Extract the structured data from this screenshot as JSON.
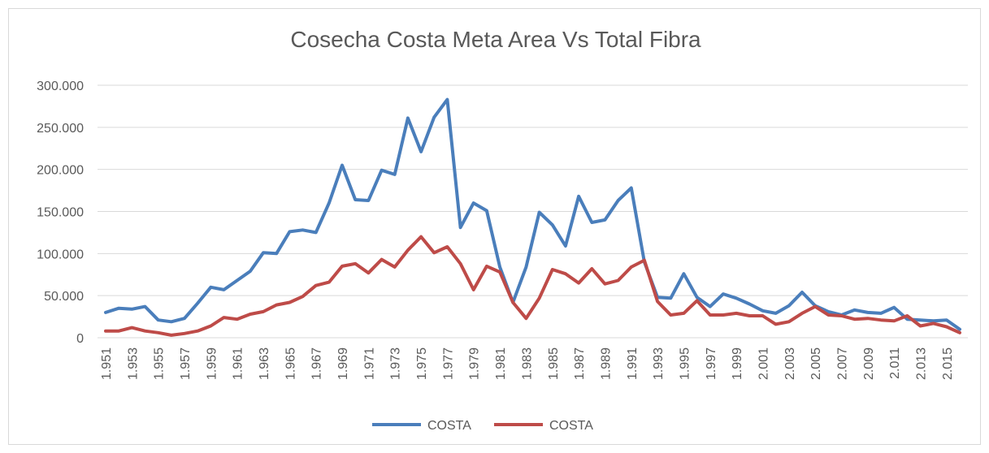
{
  "chart_data": {
    "type": "line",
    "title": "Cosecha Costa Meta Area Vs Total Fibra",
    "categories": [
      "1.951",
      null,
      "1.953",
      null,
      "1.955",
      null,
      "1.957",
      null,
      "1.959",
      null,
      "1.961",
      null,
      "1.963",
      null,
      "1.965",
      null,
      "1.967",
      null,
      "1.969",
      null,
      "1.971",
      null,
      "1.973",
      null,
      "1.975",
      null,
      "1.977",
      null,
      "1.979",
      null,
      "1.981",
      null,
      "1.983",
      null,
      "1.985",
      null,
      "1.987",
      null,
      "1.989",
      null,
      "1.991",
      null,
      "1.993",
      null,
      "1.995",
      null,
      "1.997",
      null,
      "1.999",
      null,
      "2.001",
      null,
      "2.003",
      null,
      "2.005",
      null,
      "2.007",
      null,
      "2.009",
      null,
      "2.011",
      null,
      "2.013",
      null,
      "2.015",
      null
    ],
    "series": [
      {
        "name": "COSTA",
        "color": "#4a7ebb",
        "values": [
          30000,
          35000,
          34000,
          37000,
          21000,
          19000,
          23000,
          41000,
          60000,
          57000,
          68000,
          79000,
          101000,
          100000,
          126000,
          128000,
          125000,
          160000,
          205000,
          164000,
          163000,
          199000,
          194000,
          261000,
          221000,
          262000,
          283000,
          131000,
          160000,
          151000,
          84000,
          42000,
          84000,
          149000,
          134000,
          109000,
          168000,
          137000,
          140000,
          163000,
          178000,
          90000,
          48000,
          47000,
          76000,
          48000,
          37000,
          52000,
          47000,
          40000,
          32000,
          29000,
          38000,
          54000,
          38000,
          31000,
          27000,
          33000,
          30000,
          29000,
          36000,
          22000,
          21000,
          20000,
          21000,
          10000
        ]
      },
      {
        "name": "COSTA",
        "color": "#be4b48",
        "values": [
          8000,
          8000,
          12000,
          8000,
          6000,
          3000,
          5000,
          8000,
          14000,
          24000,
          22000,
          28000,
          31000,
          39000,
          42000,
          49000,
          62000,
          66000,
          85000,
          88000,
          77000,
          93000,
          84000,
          104000,
          120000,
          101000,
          108000,
          88000,
          57000,
          85000,
          78000,
          42000,
          23000,
          47000,
          81000,
          76000,
          65000,
          82000,
          64000,
          68000,
          84000,
          92000,
          43000,
          27000,
          29000,
          44000,
          27000,
          27000,
          29000,
          26000,
          26000,
          16000,
          19000,
          29000,
          37000,
          27000,
          26000,
          22000,
          23000,
          21000,
          20000,
          26000,
          14000,
          17000,
          13000,
          6000
        ]
      }
    ],
    "ylim": [
      0,
      300000
    ],
    "yticks": [
      0,
      {
        "value": 50000,
        "label": "50.000"
      },
      {
        "value": 100000,
        "label": "100.000"
      },
      {
        "value": 150000,
        "label": "150.000"
      },
      {
        "value": 200000,
        "label": "200.000"
      },
      {
        "value": 250000,
        "label": "250.000"
      },
      {
        "value": 300000,
        "label": "300.000"
      }
    ],
    "grid": true,
    "legend": "bottom"
  }
}
